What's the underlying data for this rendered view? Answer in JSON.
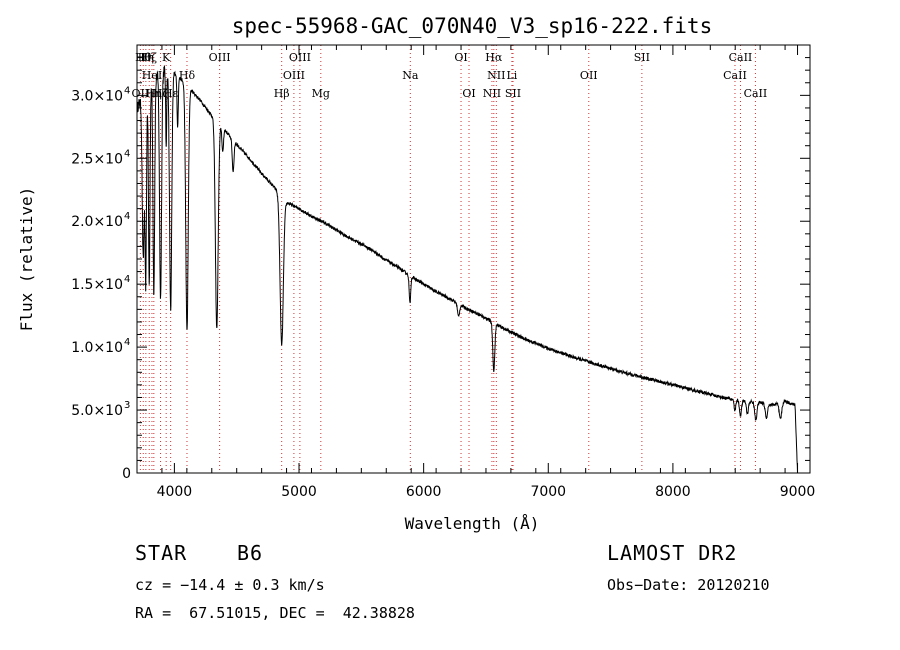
{
  "chart_data": {
    "type": "line",
    "title": "spec-55968-GAC_070N40_V3_sp16-222.fits",
    "xlabel": "Wavelength (Å)",
    "ylabel": "Flux (relative)",
    "xlim": [
      3700,
      9100
    ],
    "ylim": [
      0,
      34000
    ],
    "xticks": [
      {
        "v": 4000,
        "label": "4000"
      },
      {
        "v": 5000,
        "label": "5000"
      },
      {
        "v": 6000,
        "label": "6000"
      },
      {
        "v": 7000,
        "label": "7000"
      },
      {
        "v": 8000,
        "label": "8000"
      },
      {
        "v": 9000,
        "label": "9000"
      }
    ],
    "yticks": [
      {
        "v": 0,
        "m": "0",
        "e": ""
      },
      {
        "v": 5000,
        "m": "5.0×10",
        "e": "3"
      },
      {
        "v": 10000,
        "m": "1.0×10",
        "e": "4"
      },
      {
        "v": 15000,
        "m": "1.5×10",
        "e": "4"
      },
      {
        "v": 20000,
        "m": "2.0×10",
        "e": "4"
      },
      {
        "v": 25000,
        "m": "2.5×10",
        "e": "4"
      },
      {
        "v": 30000,
        "m": "3.0×10",
        "e": "4"
      }
    ],
    "grid": false,
    "line_color": "#000000",
    "marker_color": "#cc3333",
    "continuum": [
      [
        3700,
        29000
      ],
      [
        3800,
        31000
      ],
      [
        3900,
        32000
      ],
      [
        3950,
        32000
      ],
      [
        4000,
        31800
      ],
      [
        4100,
        30800
      ],
      [
        4200,
        29700
      ],
      [
        4300,
        28400
      ],
      [
        4400,
        27300
      ],
      [
        4500,
        26100
      ],
      [
        4600,
        25000
      ],
      [
        4700,
        23800
      ],
      [
        4800,
        22700
      ],
      [
        4900,
        21500
      ],
      [
        5000,
        21000
      ],
      [
        5100,
        20400
      ],
      [
        5200,
        19900
      ],
      [
        5300,
        19300
      ],
      [
        5400,
        18700
      ],
      [
        5500,
        18200
      ],
      [
        5600,
        17600
      ],
      [
        5700,
        16900
      ],
      [
        5800,
        16300
      ],
      [
        5900,
        15600
      ],
      [
        6000,
        15000
      ],
      [
        6100,
        14400
      ],
      [
        6200,
        13900
      ],
      [
        6300,
        13300
      ],
      [
        6400,
        12800
      ],
      [
        6500,
        12300
      ],
      [
        6600,
        11700
      ],
      [
        6700,
        11200
      ],
      [
        6800,
        10700
      ],
      [
        6900,
        10300
      ],
      [
        7000,
        9900
      ],
      [
        7200,
        9200
      ],
      [
        7400,
        8600
      ],
      [
        7600,
        8000
      ],
      [
        7800,
        7500
      ],
      [
        8000,
        7000
      ],
      [
        8200,
        6500
      ],
      [
        8400,
        6000
      ],
      [
        8500,
        5800
      ],
      [
        8700,
        5600
      ],
      [
        8800,
        5400
      ],
      [
        8900,
        5700
      ],
      [
        8980,
        5400
      ],
      [
        9000,
        0
      ]
    ],
    "absorption": [
      {
        "w": 3750,
        "d": 13000,
        "s": 8
      },
      {
        "w": 3770,
        "d": 15000,
        "s": 6
      },
      {
        "w": 3798,
        "d": 16000,
        "s": 6
      },
      {
        "w": 3835,
        "d": 17000,
        "s": 7
      },
      {
        "w": 3889,
        "d": 18000,
        "s": 8
      },
      {
        "w": 3934,
        "d": 6000,
        "s": 4
      },
      {
        "w": 3970,
        "d": 19000,
        "s": 9
      },
      {
        "w": 4026,
        "d": 4000,
        "s": 5
      },
      {
        "w": 4101,
        "d": 19500,
        "s": 10
      },
      {
        "w": 4340,
        "d": 16500,
        "s": 11
      },
      {
        "w": 4388,
        "d": 2000,
        "s": 6
      },
      {
        "w": 4471,
        "d": 2500,
        "s": 7
      },
      {
        "w": 4861,
        "d": 11800,
        "s": 13
      },
      {
        "w": 5890,
        "d": 2200,
        "s": 6
      },
      {
        "w": 6280,
        "d": 1000,
        "s": 8
      },
      {
        "w": 6563,
        "d": 3800,
        "s": 8
      },
      {
        "w": 8498,
        "d": 900,
        "s": 6
      },
      {
        "w": 8542,
        "d": 1200,
        "s": 8
      },
      {
        "w": 8598,
        "d": 1000,
        "s": 8
      },
      {
        "w": 8665,
        "d": 1400,
        "s": 9
      },
      {
        "w": 8750,
        "d": 1100,
        "s": 9
      },
      {
        "w": 8863,
        "d": 1300,
        "s": 10
      }
    ],
    "lines": [
      {
        "w": 3727,
        "label": "OII",
        "row": 3
      },
      {
        "w": 3750,
        "label": "Hθ",
        "row": 1
      },
      {
        "w": 3771,
        "label": "Hη",
        "row": 1
      },
      {
        "w": 3798,
        "label": "Hζ",
        "row": 1
      },
      {
        "w": 3820,
        "label": "HeI",
        "row": 2
      },
      {
        "w": 3835,
        "label": "Hη",
        "row": 3
      },
      {
        "w": 3889,
        "label": "Hζ",
        "row": 3
      },
      {
        "w": 3934,
        "label": "K",
        "row": 1
      },
      {
        "w": 3970,
        "label": "Hε",
        "row": 3
      },
      {
        "w": 4101,
        "label": "Hδ",
        "row": 2
      },
      {
        "w": 4363,
        "label": "OIII",
        "row": 1
      },
      {
        "w": 4861,
        "label": "Hβ",
        "row": 3
      },
      {
        "w": 4959,
        "label": "OIII",
        "row": 2
      },
      {
        "w": 5007,
        "label": "OIII",
        "row": 1
      },
      {
        "w": 5175,
        "label": "Mg",
        "row": 3
      },
      {
        "w": 5893,
        "label": "Na",
        "row": 2
      },
      {
        "w": 6300,
        "label": "OI",
        "row": 1
      },
      {
        "w": 6364,
        "label": "OI",
        "row": 3
      },
      {
        "w": 6548,
        "label": "NII",
        "row": 3
      },
      {
        "w": 6563,
        "label": "Hα",
        "row": 1
      },
      {
        "w": 6583,
        "label": "NII",
        "row": 2
      },
      {
        "w": 6708,
        "label": "Li",
        "row": 2
      },
      {
        "w": 6717,
        "label": "SII",
        "row": 3
      },
      {
        "w": 7325,
        "label": "OII",
        "row": 2
      },
      {
        "w": 7751,
        "label": "SII",
        "row": 1
      },
      {
        "w": 8498,
        "label": "CaII",
        "row": 2
      },
      {
        "w": 8542,
        "label": "CaII",
        "row": 1
      },
      {
        "w": 8662,
        "label": "CaII",
        "row": 3
      }
    ]
  },
  "info": {
    "class_label": "STAR",
    "subclass": "B6",
    "survey": "LAMOST DR2",
    "cz": "cz = −14.4 ± 0.3 km/s",
    "obs_date": "Obs−Date: 20120210",
    "coords": "RA =  67.51015, DEC =  42.38828"
  }
}
